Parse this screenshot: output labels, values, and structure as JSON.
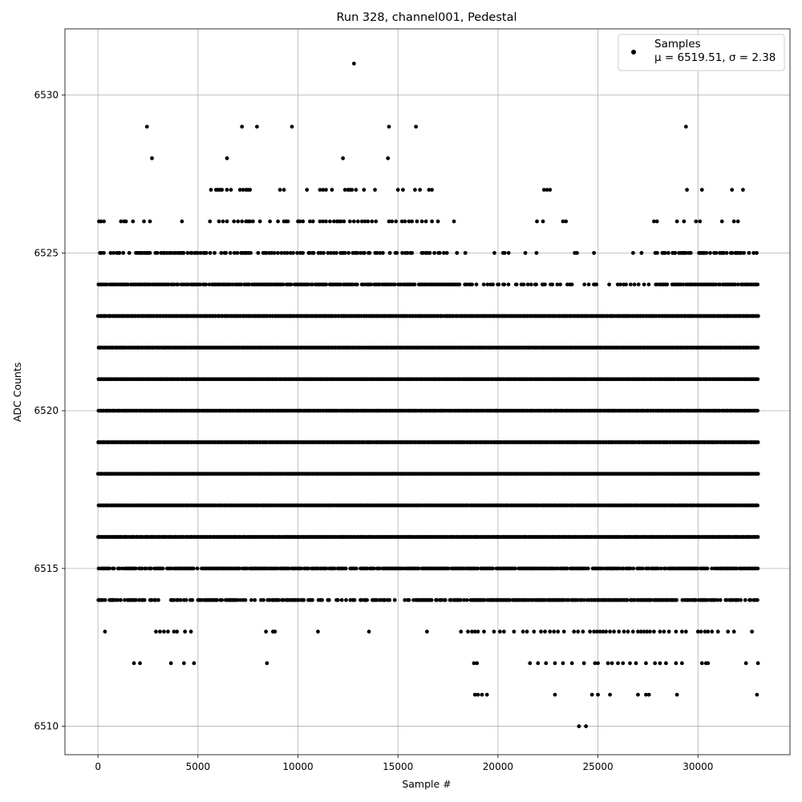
{
  "chart_data": {
    "type": "scatter",
    "title": "Run 328, channel001, Pedestal",
    "xlabel": "Sample #",
    "ylabel": "ADC Counts",
    "xlim": [
      -1650,
      34600
    ],
    "ylim": [
      6509.1,
      6532.1
    ],
    "x_ticks": [
      0,
      5000,
      10000,
      15000,
      20000,
      25000,
      30000
    ],
    "y_ticks": [
      6510,
      6515,
      6520,
      6525,
      6530
    ],
    "grid": true,
    "legend_position": "top-right",
    "series": [
      {
        "name": "Samples",
        "color": "#000000",
        "marker": "dot",
        "x_range": [
          0,
          33000
        ],
        "dense_levels": [
          6514,
          6515,
          6516,
          6517,
          6518,
          6519,
          6520,
          6521,
          6522,
          6523,
          6524,
          6525
        ],
        "sparse_points": [
          [
            12800,
            6531
          ],
          [
            2450,
            6529
          ],
          [
            7200,
            6529
          ],
          [
            7950,
            6529
          ],
          [
            9700,
            6529
          ],
          [
            14550,
            6529
          ],
          [
            15900,
            6529
          ],
          [
            29400,
            6529
          ],
          [
            2700,
            6528
          ],
          [
            6450,
            6528
          ],
          [
            12250,
            6528
          ],
          [
            14500,
            6528
          ],
          [
            5650,
            6527
          ],
          [
            5900,
            6527
          ],
          [
            6000,
            6527
          ],
          [
            6100,
            6527
          ],
          [
            6200,
            6527
          ],
          [
            6450,
            6527
          ],
          [
            6650,
            6527
          ],
          [
            7100,
            6527
          ],
          [
            7250,
            6527
          ],
          [
            7400,
            6527
          ],
          [
            7500,
            6527
          ],
          [
            7600,
            6527
          ],
          [
            9100,
            6527
          ],
          [
            9300,
            6527
          ],
          [
            10450,
            6527
          ],
          [
            11100,
            6527
          ],
          [
            11250,
            6527
          ],
          [
            11400,
            6527
          ],
          [
            11700,
            6527
          ],
          [
            12350,
            6527
          ],
          [
            12500,
            6527
          ],
          [
            12600,
            6527
          ],
          [
            12700,
            6527
          ],
          [
            12900,
            6527
          ],
          [
            13300,
            6527
          ],
          [
            13850,
            6527
          ],
          [
            15000,
            6527
          ],
          [
            15250,
            6527
          ],
          [
            15850,
            6527
          ],
          [
            16100,
            6527
          ],
          [
            16550,
            6527
          ],
          [
            16700,
            6527
          ],
          [
            22300,
            6527
          ],
          [
            22450,
            6527
          ],
          [
            22600,
            6527
          ],
          [
            29450,
            6527
          ],
          [
            30200,
            6527
          ],
          [
            31700,
            6527
          ],
          [
            32250,
            6527
          ],
          [
            50,
            6526
          ],
          [
            150,
            6526
          ],
          [
            300,
            6526
          ],
          [
            1150,
            6526
          ],
          [
            1300,
            6526
          ],
          [
            1400,
            6526
          ],
          [
            1750,
            6526
          ],
          [
            2300,
            6526
          ],
          [
            2600,
            6526
          ],
          [
            4200,
            6526
          ],
          [
            5600,
            6526
          ],
          [
            6050,
            6526
          ],
          [
            6250,
            6526
          ],
          [
            6450,
            6526
          ],
          [
            6800,
            6526
          ],
          [
            7000,
            6526
          ],
          [
            7200,
            6526
          ],
          [
            7400,
            6526
          ],
          [
            7500,
            6526
          ],
          [
            7600,
            6526
          ],
          [
            7750,
            6526
          ],
          [
            8100,
            6526
          ],
          [
            8600,
            6526
          ],
          [
            9000,
            6526
          ],
          [
            9300,
            6526
          ],
          [
            9400,
            6526
          ],
          [
            9500,
            6526
          ],
          [
            10000,
            6526
          ],
          [
            10100,
            6526
          ],
          [
            10250,
            6526
          ],
          [
            10600,
            6526
          ],
          [
            10750,
            6526
          ],
          [
            11100,
            6526
          ],
          [
            11250,
            6526
          ],
          [
            11400,
            6526
          ],
          [
            11600,
            6526
          ],
          [
            11800,
            6526
          ],
          [
            11950,
            6526
          ],
          [
            12050,
            6526
          ],
          [
            12150,
            6526
          ],
          [
            12300,
            6526
          ],
          [
            12600,
            6526
          ],
          [
            12800,
            6526
          ],
          [
            13000,
            6526
          ],
          [
            13200,
            6526
          ],
          [
            13350,
            6526
          ],
          [
            13500,
            6526
          ],
          [
            13700,
            6526
          ],
          [
            13900,
            6526
          ],
          [
            14550,
            6526
          ],
          [
            14700,
            6526
          ],
          [
            14900,
            6526
          ],
          [
            15200,
            6526
          ],
          [
            15350,
            6526
          ],
          [
            15550,
            6526
          ],
          [
            15700,
            6526
          ],
          [
            15950,
            6526
          ],
          [
            16200,
            6526
          ],
          [
            16400,
            6526
          ],
          [
            16700,
            6526
          ],
          [
            17000,
            6526
          ],
          [
            17800,
            6526
          ],
          [
            21950,
            6526
          ],
          [
            22250,
            6526
          ],
          [
            23250,
            6526
          ],
          [
            23400,
            6526
          ],
          [
            27800,
            6526
          ],
          [
            27950,
            6526
          ],
          [
            28950,
            6526
          ],
          [
            29300,
            6526
          ],
          [
            29900,
            6526
          ],
          [
            30100,
            6526
          ],
          [
            31200,
            6526
          ],
          [
            31800,
            6526
          ],
          [
            32000,
            6526
          ],
          [
            350,
            6513
          ],
          [
            2900,
            6513
          ],
          [
            3100,
            6513
          ],
          [
            3300,
            6513
          ],
          [
            3500,
            6513
          ],
          [
            3800,
            6513
          ],
          [
            3950,
            6513
          ],
          [
            4350,
            6513
          ],
          [
            4650,
            6513
          ],
          [
            8400,
            6513
          ],
          [
            8750,
            6513
          ],
          [
            8850,
            6513
          ],
          [
            11000,
            6513
          ],
          [
            13550,
            6513
          ],
          [
            16450,
            6513
          ],
          [
            18150,
            6513
          ],
          [
            18500,
            6513
          ],
          [
            18700,
            6513
          ],
          [
            18850,
            6513
          ],
          [
            19000,
            6513
          ],
          [
            19300,
            6513
          ],
          [
            19800,
            6513
          ],
          [
            20100,
            6513
          ],
          [
            20300,
            6513
          ],
          [
            20800,
            6513
          ],
          [
            21250,
            6513
          ],
          [
            21450,
            6513
          ],
          [
            21800,
            6513
          ],
          [
            22150,
            6513
          ],
          [
            22350,
            6513
          ],
          [
            22600,
            6513
          ],
          [
            22800,
            6513
          ],
          [
            23000,
            6513
          ],
          [
            23300,
            6513
          ],
          [
            23800,
            6513
          ],
          [
            24000,
            6513
          ],
          [
            24250,
            6513
          ],
          [
            24600,
            6513
          ],
          [
            24800,
            6513
          ],
          [
            24950,
            6513
          ],
          [
            25100,
            6513
          ],
          [
            25250,
            6513
          ],
          [
            25400,
            6513
          ],
          [
            25600,
            6513
          ],
          [
            25800,
            6513
          ],
          [
            26050,
            6513
          ],
          [
            26300,
            6513
          ],
          [
            26500,
            6513
          ],
          [
            26750,
            6513
          ],
          [
            27000,
            6513
          ],
          [
            27150,
            6513
          ],
          [
            27300,
            6513
          ],
          [
            27450,
            6513
          ],
          [
            27600,
            6513
          ],
          [
            27800,
            6513
          ],
          [
            28100,
            6513
          ],
          [
            28300,
            6513
          ],
          [
            28550,
            6513
          ],
          [
            28900,
            6513
          ],
          [
            29200,
            6513
          ],
          [
            29400,
            6513
          ],
          [
            30000,
            6513
          ],
          [
            30150,
            6513
          ],
          [
            30350,
            6513
          ],
          [
            30500,
            6513
          ],
          [
            30700,
            6513
          ],
          [
            31000,
            6513
          ],
          [
            31500,
            6513
          ],
          [
            31800,
            6513
          ],
          [
            32700,
            6513
          ],
          [
            1800,
            6512
          ],
          [
            2100,
            6512
          ],
          [
            3650,
            6512
          ],
          [
            4300,
            6512
          ],
          [
            4800,
            6512
          ],
          [
            8450,
            6512
          ],
          [
            18800,
            6512
          ],
          [
            18950,
            6512
          ],
          [
            21600,
            6512
          ],
          [
            22000,
            6512
          ],
          [
            22400,
            6512
          ],
          [
            22850,
            6512
          ],
          [
            23250,
            6512
          ],
          [
            23700,
            6512
          ],
          [
            24300,
            6512
          ],
          [
            24850,
            6512
          ],
          [
            25000,
            6512
          ],
          [
            25500,
            6512
          ],
          [
            25700,
            6512
          ],
          [
            26000,
            6512
          ],
          [
            26250,
            6512
          ],
          [
            26600,
            6512
          ],
          [
            26900,
            6512
          ],
          [
            27400,
            6512
          ],
          [
            27850,
            6512
          ],
          [
            28100,
            6512
          ],
          [
            28400,
            6512
          ],
          [
            28900,
            6512
          ],
          [
            29200,
            6512
          ],
          [
            30200,
            6512
          ],
          [
            30400,
            6512
          ],
          [
            30500,
            6512
          ],
          [
            32400,
            6512
          ],
          [
            33000,
            6512
          ],
          [
            18850,
            6511
          ],
          [
            19000,
            6511
          ],
          [
            19200,
            6511
          ],
          [
            19450,
            6511
          ],
          [
            22850,
            6511
          ],
          [
            24700,
            6511
          ],
          [
            25000,
            6511
          ],
          [
            25600,
            6511
          ],
          [
            27000,
            6511
          ],
          [
            27400,
            6511
          ],
          [
            27550,
            6511
          ],
          [
            28950,
            6511
          ],
          [
            32950,
            6511
          ],
          [
            24050,
            6510
          ],
          [
            24400,
            6510
          ]
        ]
      }
    ],
    "legend": {
      "label": "Samples",
      "stats": "μ = 6519.51, σ = 2.38"
    }
  }
}
